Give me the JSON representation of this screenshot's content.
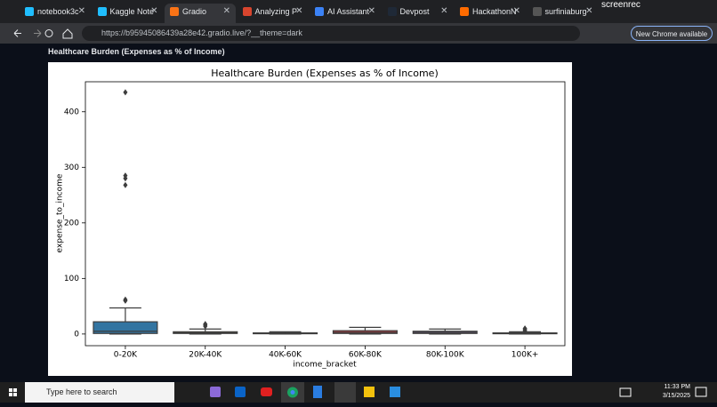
{
  "browser": {
    "tabs": [
      "notebook3c",
      "Kaggle Note",
      "Gradio",
      "Analyzing P",
      "AI Assistant",
      "Devpost",
      "HackathonN",
      "surfiniaburg"
    ],
    "url": "https://b95945086439a28e42.gradio.live/?__theme=dark",
    "update_button": "New Chrome available",
    "recorder": "screenrec"
  },
  "app": {
    "label": "Healthcare Burden (Expenses as % of Income)"
  },
  "chart_data": {
    "type": "box",
    "title": "Healthcare Burden (Expenses as % of Income)",
    "x_label": "income_bracket",
    "y_label": "expense_to_income",
    "categories": [
      "0-20K",
      "20K-40K",
      "40K-60K",
      "60K-80K",
      "80K-100K",
      "100K+"
    ],
    "boxes": [
      {
        "min": 0,
        "q1": 1,
        "median": 5,
        "q3": 22,
        "max": 47,
        "outliers": [
          60,
          62,
          268,
          280,
          285,
          435
        ],
        "color": "#3274a1"
      },
      {
        "min": 0,
        "q1": 1,
        "median": 2,
        "q3": 4,
        "max": 9,
        "outliers": [
          14,
          16,
          18
        ],
        "color": "#e1812c"
      },
      {
        "min": 0,
        "q1": 0.5,
        "median": 1,
        "q3": 2,
        "max": 4,
        "outliers": [],
        "color": "#3a923a"
      },
      {
        "min": 0,
        "q1": 1,
        "median": 3,
        "q3": 6,
        "max": 12,
        "outliers": [],
        "color": "#c03d3e"
      },
      {
        "min": 0,
        "q1": 1,
        "median": 3,
        "q3": 5,
        "max": 9,
        "outliers": [],
        "color": "#9372b2"
      },
      {
        "min": 0,
        "q1": 0.5,
        "median": 1,
        "q3": 2,
        "max": 4,
        "outliers": [
          6,
          8,
          10
        ],
        "color": "#845b53"
      }
    ],
    "ylim": [
      -21,
      454
    ],
    "yticks": [
      0,
      100,
      200,
      300,
      400
    ],
    "grid": false
  },
  "taskbar": {
    "search": "Type here to search",
    "time": "11:33 PM",
    "date": "3/15/2025"
  }
}
